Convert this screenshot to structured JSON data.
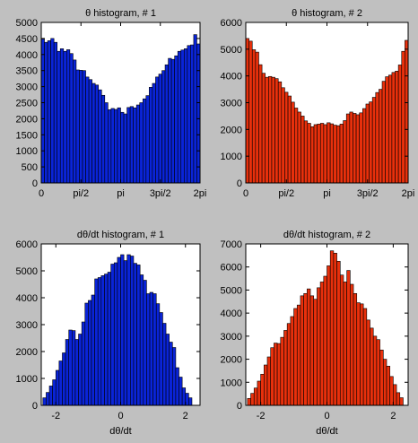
{
  "figure": {
    "background": "#c0c0c0",
    "axes_bg": "#ffffff"
  },
  "chart_data": [
    {
      "type": "bar",
      "title": "θ histogram, # 1",
      "xlabel": "",
      "ylabel": "",
      "color": "#0a24d8",
      "xlim": [
        0,
        6.2832
      ],
      "ylim": [
        0,
        5000
      ],
      "xticks": [
        0,
        1.5708,
        3.1416,
        4.7124,
        6.2832
      ],
      "xticklabels": [
        "0",
        "pi/2",
        "pi",
        "3pi/2",
        "2pi"
      ],
      "yticks": [
        0,
        500,
        1000,
        1500,
        2000,
        2500,
        3000,
        3500,
        4000,
        4500,
        5000
      ],
      "yticklabels": [
        "0",
        "500",
        "1000",
        "1500",
        "2000",
        "2500",
        "3000",
        "3500",
        "4000",
        "4500",
        "5000"
      ],
      "bin_start": 0,
      "bin_width": 0.12566,
      "values": [
        4480,
        4380,
        4430,
        4500,
        4380,
        4100,
        4180,
        4100,
        4150,
        4030,
        3830,
        3520,
        3510,
        3500,
        3300,
        3220,
        3100,
        3050,
        2900,
        2730,
        2500,
        2280,
        2320,
        2290,
        2340,
        2200,
        2150,
        2350,
        2380,
        2340,
        2430,
        2500,
        2620,
        2720,
        2980,
        3100,
        3300,
        3390,
        3500,
        3680,
        3880,
        3850,
        3960,
        4100,
        4140,
        4180,
        4280,
        4300,
        4620,
        4330
      ]
    },
    {
      "type": "bar",
      "title": "θ histogram, # 2",
      "xlabel": "",
      "ylabel": "",
      "color": "#e8300c",
      "xlim": [
        0,
        6.2832
      ],
      "ylim": [
        0,
        6000
      ],
      "xticks": [
        0,
        1.5708,
        3.1416,
        4.7124,
        6.2832
      ],
      "xticklabels": [
        "0",
        "pi/2",
        "pi",
        "3pi/2",
        "2pi"
      ],
      "yticks": [
        0,
        1000,
        2000,
        3000,
        4000,
        5000,
        6000
      ],
      "yticklabels": [
        "0",
        "1000",
        "2000",
        "3000",
        "4000",
        "5000",
        "6000"
      ],
      "bin_start": 0,
      "bin_width": 0.12566,
      "values": [
        5400,
        5300,
        4980,
        4890,
        4420,
        4100,
        3950,
        3980,
        3950,
        3900,
        3780,
        3560,
        3390,
        3250,
        3020,
        2800,
        2650,
        2500,
        2320,
        2230,
        2100,
        2180,
        2200,
        2230,
        2180,
        2250,
        2210,
        2160,
        2140,
        2200,
        2330,
        2580,
        2650,
        2600,
        2550,
        2620,
        2780,
        2950,
        3030,
        3200,
        3380,
        3500,
        3800,
        3970,
        4030,
        4130,
        4180,
        4410,
        4920,
        5330
      ]
    },
    {
      "type": "bar",
      "title": "dθ/dt histogram, # 1",
      "xlabel": "dθ/dt",
      "ylabel": "",
      "color": "#0a24d8",
      "xlim": [
        -2.45,
        2.45
      ],
      "ylim": [
        0,
        6000
      ],
      "xticks": [
        -2,
        0,
        2
      ],
      "xticklabels": [
        "-2",
        "0",
        "2"
      ],
      "yticks": [
        0,
        1000,
        2000,
        3000,
        4000,
        5000,
        6000
      ],
      "yticklabels": [
        "0",
        "1000",
        "2000",
        "3000",
        "4000",
        "5000",
        "6000"
      ],
      "bin_start": -2.4,
      "bin_width": 0.1,
      "values": [
        280,
        480,
        720,
        950,
        1300,
        1650,
        1950,
        2450,
        2800,
        2780,
        2450,
        2650,
        3100,
        3800,
        3900,
        4100,
        4700,
        4750,
        4820,
        4880,
        4950,
        5250,
        5300,
        5500,
        5600,
        5380,
        5600,
        5550,
        5280,
        5220,
        4850,
        4650,
        4150,
        4200,
        4150,
        3780,
        3450,
        3050,
        2650,
        2350,
        2150,
        1400,
        1050,
        650,
        450,
        280
      ]
    },
    {
      "type": "bar",
      "title": "dθ/dt histogram, # 2",
      "xlabel": "dθ/dt",
      "ylabel": "",
      "color": "#e8300c",
      "xlim": [
        -2.45,
        2.45
      ],
      "ylim": [
        0,
        7000
      ],
      "xticks": [
        -2,
        0,
        2
      ],
      "xticklabels": [
        "-2",
        "0",
        "2"
      ],
      "yticks": [
        0,
        1000,
        2000,
        3000,
        4000,
        5000,
        6000,
        7000
      ],
      "yticklabels": [
        "0",
        "1000",
        "2000",
        "3000",
        "4000",
        "5000",
        "6000",
        "7000"
      ],
      "bin_start": -2.4,
      "bin_width": 0.1,
      "values": [
        300,
        520,
        750,
        1050,
        1350,
        1750,
        2100,
        2500,
        2700,
        2680,
        2950,
        3250,
        3550,
        3850,
        4200,
        4350,
        4750,
        4850,
        5050,
        4750,
        4600,
        5100,
        5350,
        5600,
        6050,
        6700,
        6600,
        6250,
        5650,
        5350,
        5850,
        5250,
        4850,
        4450,
        4400,
        4200,
        3700,
        3350,
        3000,
        2850,
        2400,
        2000,
        1700,
        1250,
        900,
        550,
        330
      ]
    }
  ]
}
